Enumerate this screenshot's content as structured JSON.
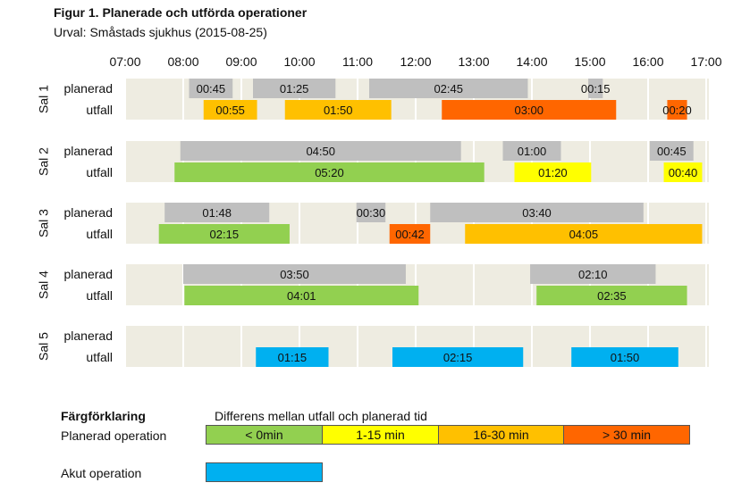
{
  "title": "Figur 1. Planerade och utförda operationer",
  "subtitle": "Urval: Småstads sjukhus (2015-08-25)",
  "colors": {
    "planned": "#bfbfbf",
    "under0": "#92d050",
    "d1_15": "#ffff00",
    "d16_30": "#ffc000",
    "over30": "#ff6600",
    "acute": "#00b0f0",
    "row_bg": "#eeece1"
  },
  "chart_data": {
    "type": "gantt",
    "x_axis": {
      "start_hour": 7,
      "end_hour": 17,
      "tick_labels": [
        "07:00",
        "08:00",
        "09:00",
        "10:00",
        "11:00",
        "12:00",
        "13:00",
        "14:00",
        "15:00",
        "16:00",
        "17:00"
      ]
    },
    "row_labels": {
      "planned": "planerad",
      "outcome": "utfall"
    },
    "rooms": [
      {
        "name": "Sal 1",
        "planned": [
          {
            "start": 8.1,
            "end": 8.85,
            "label": "00:45"
          },
          {
            "start": 9.2,
            "end": 10.62,
            "label": "01:25"
          },
          {
            "start": 11.2,
            "end": 13.93,
            "label": "02:45"
          },
          {
            "start": 14.97,
            "end": 15.22,
            "label": "00:15"
          }
        ],
        "outcome": [
          {
            "start": 8.35,
            "end": 9.27,
            "label": "00:55",
            "category": "d16_30"
          },
          {
            "start": 9.75,
            "end": 11.58,
            "label": "01:50",
            "category": "d16_30"
          },
          {
            "start": 12.45,
            "end": 15.45,
            "label": "03:00",
            "category": "over30"
          },
          {
            "start": 16.33,
            "end": 16.67,
            "label": "00:20",
            "category": "over30"
          }
        ]
      },
      {
        "name": "Sal 2",
        "planned": [
          {
            "start": 7.95,
            "end": 12.78,
            "label": "04:50"
          },
          {
            "start": 13.5,
            "end": 14.5,
            "label": "01:00"
          },
          {
            "start": 16.03,
            "end": 16.78,
            "label": "00:45"
          }
        ],
        "outcome": [
          {
            "start": 7.85,
            "end": 13.18,
            "label": "05:20",
            "category": "under0"
          },
          {
            "start": 13.7,
            "end": 15.02,
            "label": "01:20",
            "category": "d1_15"
          },
          {
            "start": 16.27,
            "end": 16.93,
            "label": "00:40",
            "category": "d1_15"
          }
        ]
      },
      {
        "name": "Sal 3",
        "planned": [
          {
            "start": 7.68,
            "end": 9.48,
            "label": "01:48"
          },
          {
            "start": 10.98,
            "end": 11.48,
            "label": "00:30"
          },
          {
            "start": 12.25,
            "end": 15.92,
            "label": "03:40"
          }
        ],
        "outcome": [
          {
            "start": 7.58,
            "end": 9.83,
            "label": "02:15",
            "category": "under0"
          },
          {
            "start": 11.55,
            "end": 12.25,
            "label": "00:42",
            "category": "over30"
          },
          {
            "start": 12.85,
            "end": 16.93,
            "label": "04:05",
            "category": "d16_30"
          }
        ]
      },
      {
        "name": "Sal 4",
        "planned": [
          {
            "start": 8.0,
            "end": 11.83,
            "label": "03:50"
          },
          {
            "start": 13.97,
            "end": 16.13,
            "label": "02:10"
          }
        ],
        "outcome": [
          {
            "start": 8.02,
            "end": 12.05,
            "label": "04:01",
            "category": "under0"
          },
          {
            "start": 14.08,
            "end": 16.67,
            "label": "02:35",
            "category": "under0"
          }
        ]
      },
      {
        "name": "Sal 5",
        "planned": [],
        "outcome": [
          {
            "start": 9.25,
            "end": 10.5,
            "label": "01:15",
            "category": "acute"
          },
          {
            "start": 11.6,
            "end": 13.85,
            "label": "02:15",
            "category": "acute"
          },
          {
            "start": 14.68,
            "end": 16.52,
            "label": "01:50",
            "category": "acute"
          }
        ]
      }
    ]
  },
  "legend": {
    "title": "Färgförklaring",
    "difference_label": "Differens mellan utfall och planerad tid",
    "planned_label": "Planerad operation",
    "acute_label": "Akut operation",
    "items": [
      {
        "label": "< 0min",
        "category": "under0"
      },
      {
        "label": "1-15 min",
        "category": "d1_15"
      },
      {
        "label": "16-30 min",
        "category": "d16_30"
      },
      {
        "label": "> 30 min",
        "category": "over30"
      }
    ]
  }
}
